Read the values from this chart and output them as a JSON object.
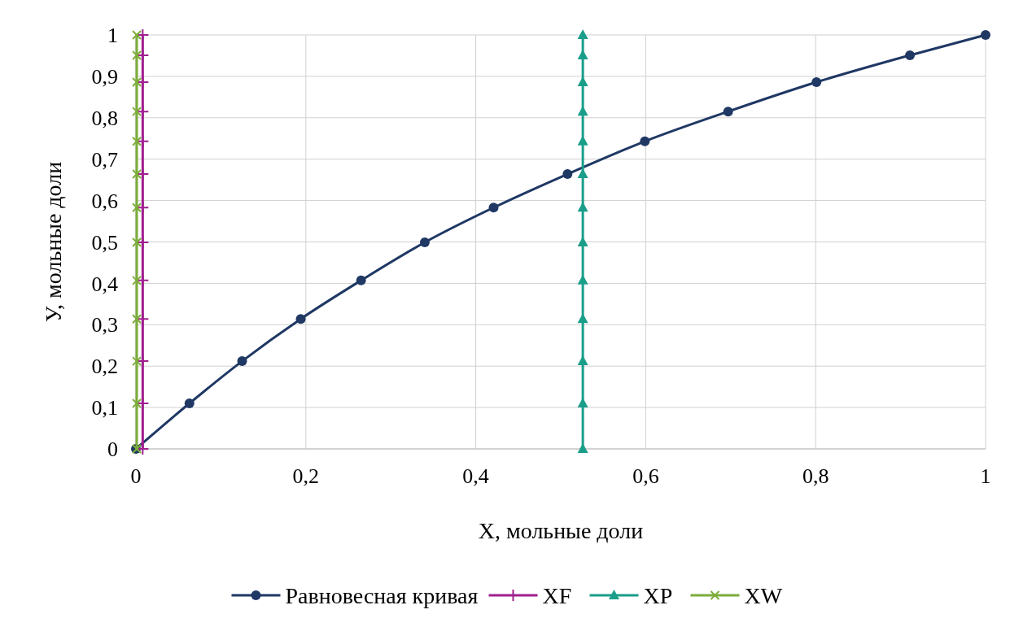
{
  "chart_data": {
    "type": "line",
    "xlabel": "X, мольные доли",
    "ylabel": "У, мольные доли",
    "xlim": [
      0,
      1
    ],
    "ylim": [
      0,
      1
    ],
    "xticks": [
      0,
      {
        "value": 0.2,
        "label": "0,2"
      },
      {
        "value": 0.4,
        "label": "0,4"
      },
      {
        "value": 0.6,
        "label": "0,6"
      },
      {
        "value": 0.8,
        "label": "0,8"
      },
      1
    ],
    "yticks": [
      0,
      {
        "value": 0.1,
        "label": "0,1"
      },
      {
        "value": 0.2,
        "label": "0,2"
      },
      {
        "value": 0.3,
        "label": "0,3"
      },
      {
        "value": 0.4,
        "label": "0,4"
      },
      {
        "value": 0.5,
        "label": "0,5"
      },
      {
        "value": 0.6,
        "label": "0,6"
      },
      {
        "value": 0.7,
        "label": "0,7"
      },
      {
        "value": 0.8,
        "label": "0,8"
      },
      {
        "value": 0.9,
        "label": "0,9"
      },
      1
    ],
    "grid": true,
    "legend": "bottom",
    "series": [
      {
        "name": "Равновесная кривая",
        "color": "#1f3864",
        "marker": "circle",
        "x": [
          0,
          0.063,
          0.125,
          0.194,
          0.265,
          0.34,
          0.421,
          0.508,
          0.599,
          0.697,
          0.801,
          0.911,
          1
        ],
        "values": [
          0,
          0.11,
          0.212,
          0.314,
          0.407,
          0.499,
          0.583,
          0.664,
          0.743,
          0.815,
          0.886,
          0.951,
          1
        ]
      },
      {
        "name": "XF",
        "color": "#a0208f",
        "marker": "cross",
        "x": [
          0.008,
          0.008,
          0.008,
          0.008,
          0.008,
          0.008,
          0.008,
          0.008,
          0.008,
          0.008,
          0.008,
          0.008,
          0.008
        ],
        "values": [
          0,
          0.11,
          0.212,
          0.314,
          0.407,
          0.499,
          0.583,
          0.664,
          0.743,
          0.815,
          0.886,
          0.951,
          1
        ]
      },
      {
        "name": "XP",
        "color": "#1a9e8a",
        "marker": "triangle",
        "x": [
          0.526,
          0.526,
          0.526,
          0.526,
          0.526,
          0.526,
          0.526,
          0.526,
          0.526,
          0.526,
          0.526,
          0.526,
          0.526
        ],
        "values": [
          0,
          0.11,
          0.212,
          0.314,
          0.407,
          0.499,
          0.583,
          0.664,
          0.743,
          0.815,
          0.886,
          0.951,
          1
        ]
      },
      {
        "name": "XW",
        "color": "#7cad3a",
        "marker": "cross",
        "x": [
          0.001,
          0.001,
          0.001,
          0.001,
          0.001,
          0.001,
          0.001,
          0.001,
          0.001,
          0.001,
          0.001,
          0.001,
          0.001
        ],
        "values": [
          0,
          0.11,
          0.212,
          0.314,
          0.407,
          0.499,
          0.583,
          0.664,
          0.743,
          0.815,
          0.886,
          0.951,
          1
        ]
      }
    ]
  }
}
